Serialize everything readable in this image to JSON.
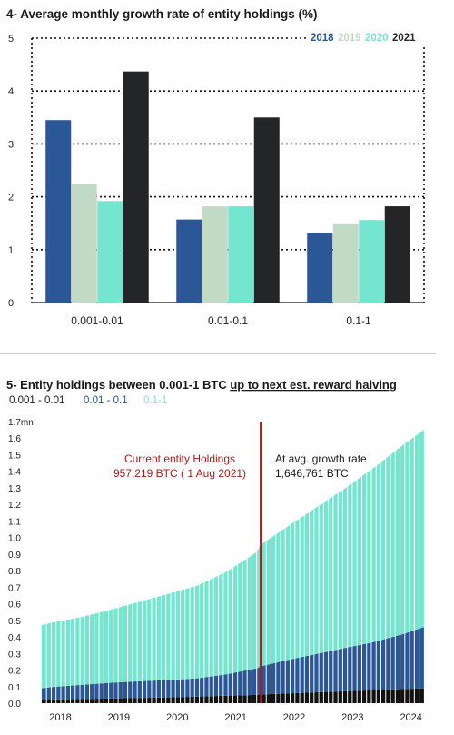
{
  "chart_data": [
    {
      "type": "bar",
      "title": "4- Average monthly growth rate of entity holdings (%)",
      "categories": [
        "0.001-0.01",
        "0.01-0.1",
        "0.1-1"
      ],
      "series": [
        {
          "name": "2018",
          "color": "#2b5797",
          "values": [
            3.45,
            1.57,
            1.32
          ]
        },
        {
          "name": "2019",
          "color": "#c1dac3",
          "values": [
            2.25,
            1.82,
            1.48
          ]
        },
        {
          "name": "2020",
          "color": "#74e6d0",
          "values": [
            1.92,
            1.82,
            1.56
          ]
        },
        {
          "name": "2021",
          "color": "#232527",
          "values": [
            4.37,
            3.5,
            1.82
          ]
        }
      ],
      "yticks": [
        "0",
        "1",
        "2",
        "3",
        "4",
        "5"
      ],
      "ylim": [
        0,
        5
      ],
      "grid": true,
      "legend": "top-right"
    },
    {
      "type": "area",
      "title_plain": "5- Entity holdings between 0.001-1 BTC ",
      "title_underlined": "up to next est. reward halving",
      "legend_labels": [
        "0.001 - 0.01",
        "0.01 - 0.1",
        "0.1-1"
      ],
      "legend_colors": [
        "#1c1c1c",
        "#2b5797",
        "#74e6d0"
      ],
      "yticks": [
        "0.0",
        "0.1",
        "0.2",
        "0.3",
        "0.4",
        "0.5",
        "0.6",
        "0.7",
        "0.8",
        "0.9",
        "1.0",
        "1.1",
        "1.2",
        "1.3",
        "1.4",
        "1.5",
        "1.6",
        "1.7mn"
      ],
      "ylim": [
        0,
        1.7
      ],
      "xticks": [
        "2018",
        "2019",
        "2020",
        "2021",
        "2022",
        "2023",
        "2024"
      ],
      "xlim": [
        2017.8,
        2024.45
      ],
      "x": [
        2017.83,
        2018.0,
        2018.5,
        2019.0,
        2019.5,
        2020.0,
        2020.5,
        2021.0,
        2021.5,
        2021.58,
        2022.0,
        2022.5,
        2023.0,
        2023.5,
        2024.0,
        2024.37
      ],
      "series": [
        {
          "name": "0.001 - 0.01",
          "color": "#111111",
          "values": [
            0.02,
            0.022,
            0.025,
            0.028,
            0.032,
            0.035,
            0.04,
            0.045,
            0.05,
            0.052,
            0.058,
            0.065,
            0.072,
            0.078,
            0.085,
            0.09
          ]
        },
        {
          "name": "0.01 - 0.1",
          "color": "#2b5797",
          "values": [
            0.07,
            0.075,
            0.085,
            0.095,
            0.1,
            0.105,
            0.11,
            0.13,
            0.16,
            0.17,
            0.2,
            0.23,
            0.26,
            0.29,
            0.33,
            0.37
          ]
        },
        {
          "name": "0.1-1",
          "color": "#74e6d0",
          "values": [
            0.38,
            0.39,
            0.41,
            0.44,
            0.48,
            0.52,
            0.56,
            0.62,
            0.7,
            0.735,
            0.8,
            0.88,
            0.96,
            1.05,
            1.14,
            1.19
          ]
        }
      ],
      "event_x": 2021.58,
      "event_color": "#a61c1c",
      "annotation_left": {
        "lines": [
          "Current entity Holdings",
          "957,219 BTC ( 1 Aug 2021)"
        ],
        "color": "#a61c1c"
      },
      "annotation_right": {
        "lines": [
          "At avg. growth rate",
          "1,646,761 BTC"
        ],
        "color": "#1a1a1a"
      }
    }
  ]
}
